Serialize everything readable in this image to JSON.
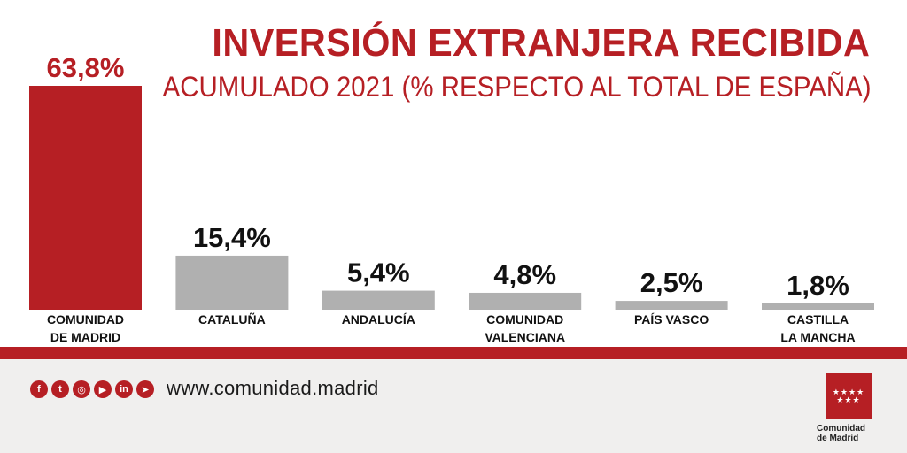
{
  "header": {
    "title": "INVERSIÓN EXTRANJERA RECIBIDA",
    "subtitle": "ACUMULADO 2021 (% RESPECTO AL TOTAL DE ESPAÑA)"
  },
  "colors": {
    "accent": "#b61f24",
    "bar_default": "#b0b0b0",
    "footer_bg": "#f0efee"
  },
  "chart_data": {
    "type": "bar",
    "title": "INVERSIÓN EXTRANJERA RECIBIDA",
    "subtitle": "ACUMULADO 2021 (% RESPECTO AL TOTAL DE ESPAÑA)",
    "categories": [
      [
        "COMUNIDAD",
        "DE MADRID"
      ],
      [
        "CATALUÑA"
      ],
      [
        "ANDALUCÍA"
      ],
      [
        "COMUNIDAD",
        "VALENCIANA"
      ],
      [
        "PAÍS VASCO"
      ],
      [
        "CASTILLA",
        "LA MANCHA"
      ]
    ],
    "values": [
      63.8,
      15.4,
      5.4,
      4.8,
      2.5,
      1.8
    ],
    "value_labels": [
      "63,8%",
      "15,4%",
      "5,4%",
      "4,8%",
      "2,5%",
      "1,8%"
    ],
    "ylim": [
      0,
      63.8
    ],
    "xlabel": "",
    "ylabel": "",
    "grid": false,
    "highlight_index": 0
  },
  "footer": {
    "social_icons": [
      "facebook-icon",
      "twitter-icon",
      "instagram-icon",
      "youtube-icon",
      "linkedin-icon",
      "telegram-icon"
    ],
    "social_glyphs": [
      "f",
      "t",
      "◎",
      "▶",
      "in",
      "➤"
    ],
    "url": "www.comunidad.madrid",
    "logo_stars": "★★★★\n★★★",
    "logo_text_line1": "Comunidad",
    "logo_text_line2": "de Madrid"
  }
}
